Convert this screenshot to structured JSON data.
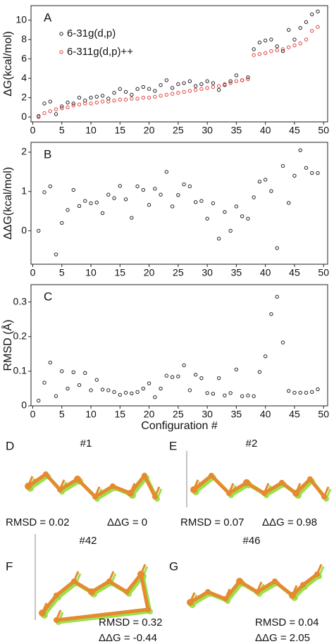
{
  "chart_data": [
    {
      "type": "scatter",
      "label": "A",
      "ylabel": "ΔG(kcal/mol)",
      "x": [
        1,
        2,
        3,
        4,
        5,
        6,
        7,
        8,
        9,
        10,
        11,
        12,
        13,
        14,
        15,
        16,
        17,
        18,
        19,
        20,
        21,
        22,
        23,
        24,
        25,
        26,
        27,
        28,
        29,
        30,
        31,
        32,
        33,
        34,
        35,
        36,
        37,
        38,
        39,
        40,
        41,
        42,
        43,
        44,
        45,
        46,
        47,
        48,
        49
      ],
      "series": [
        {
          "name": "6-31g(d,p)",
          "color": "#222222",
          "values": [
            0.1,
            1.4,
            1.6,
            0.3,
            1.1,
            1.5,
            1.4,
            2.0,
            1.7,
            2.0,
            2.1,
            2.2,
            1.9,
            2.5,
            2.9,
            2.6,
            2.3,
            2.9,
            3.1,
            2.9,
            2.7,
            3.3,
            3.8,
            3.0,
            3.4,
            3.5,
            3.7,
            3.2,
            3.4,
            3.7,
            3.5,
            2.8,
            3.3,
            3.7,
            4.3,
            3.8,
            4.1,
            7.0,
            7.7,
            7.9,
            8.0,
            7.3,
            6.8,
            9.0,
            8.0,
            9.2,
            9.8,
            10.6,
            10.9
          ]
        },
        {
          "name": "6-311g(d,p)++",
          "color": "#e0403a",
          "values": [
            0.0,
            0.4,
            0.6,
            0.8,
            0.9,
            1.0,
            1.2,
            1.3,
            1.4,
            1.4,
            1.5,
            1.6,
            1.6,
            1.7,
            1.8,
            1.8,
            1.9,
            1.9,
            2.0,
            2.0,
            2.1,
            2.2,
            2.3,
            2.4,
            2.5,
            2.6,
            2.7,
            2.8,
            2.9,
            3.0,
            3.1,
            3.2,
            3.4,
            3.5,
            3.7,
            3.8,
            3.9,
            6.4,
            6.5,
            6.6,
            6.8,
            6.9,
            7.0,
            7.2,
            7.4,
            7.6,
            8.0,
            8.9,
            9.3
          ]
        }
      ],
      "xlim": [
        -0.3,
        50.7
      ],
      "ylim": [
        -0.5,
        11.5
      ],
      "xticks": [
        0,
        5,
        10,
        15,
        20,
        25,
        30,
        35,
        40,
        45,
        50
      ],
      "yticks": [
        0,
        2,
        4,
        6,
        8,
        10
      ],
      "legend": "upper left"
    },
    {
      "type": "scatter",
      "label": "B",
      "ylabel": "ΔΔG(kcal/mol)",
      "x": [
        1,
        2,
        3,
        4,
        5,
        6,
        7,
        8,
        9,
        10,
        11,
        12,
        13,
        14,
        15,
        16,
        17,
        18,
        19,
        20,
        21,
        22,
        23,
        24,
        25,
        26,
        27,
        28,
        29,
        30,
        31,
        32,
        33,
        34,
        35,
        36,
        37,
        38,
        39,
        40,
        41,
        42,
        43,
        44,
        45,
        46,
        47,
        48,
        49
      ],
      "series": [
        {
          "name": "ΔΔG",
          "color": "#222222",
          "values": [
            0.0,
            0.98,
            1.13,
            -0.6,
            0.2,
            0.53,
            1.04,
            0.63,
            0.76,
            0.7,
            0.72,
            0.45,
            0.92,
            0.83,
            1.14,
            0.8,
            0.33,
            1.13,
            1.04,
            0.66,
            1.07,
            0.92,
            1.5,
            0.62,
            0.91,
            1.18,
            1.13,
            0.73,
            0.76,
            0.31,
            0.7,
            -0.2,
            0.48,
            0.0,
            0.62,
            0.37,
            0.31,
            0.85,
            1.25,
            1.3,
            1.01,
            -0.44,
            1.65,
            0.71,
            1.4,
            2.05,
            1.6,
            1.47,
            1.47
          ]
        }
      ],
      "xlim": [
        -0.3,
        50.7
      ],
      "ylim": [
        -0.85,
        2.25
      ],
      "xticks": [
        0,
        5,
        10,
        15,
        20,
        25,
        30,
        35,
        40,
        45,
        50
      ],
      "yticks": [
        0,
        1,
        2
      ]
    },
    {
      "type": "scatter",
      "label": "C",
      "ylabel": "RMSD (Å)",
      "xlabel": "Configuration #",
      "x": [
        1,
        2,
        3,
        4,
        5,
        6,
        7,
        8,
        9,
        10,
        11,
        12,
        13,
        14,
        15,
        16,
        17,
        18,
        19,
        20,
        21,
        22,
        23,
        24,
        25,
        26,
        27,
        28,
        29,
        30,
        31,
        32,
        33,
        34,
        35,
        36,
        37,
        38,
        39,
        40,
        41,
        42,
        43,
        44,
        45,
        46,
        47,
        48,
        49
      ],
      "series": [
        {
          "name": "RMSD",
          "color": "#222222",
          "values": [
            0.015,
            0.067,
            0.125,
            0.028,
            0.1,
            0.05,
            0.097,
            0.06,
            0.095,
            0.045,
            0.075,
            0.047,
            0.045,
            0.04,
            0.032,
            0.038,
            0.036,
            0.04,
            0.05,
            0.065,
            0.025,
            0.05,
            0.087,
            0.083,
            0.085,
            0.117,
            0.045,
            0.09,
            0.08,
            0.037,
            0.035,
            0.08,
            0.03,
            0.037,
            0.105,
            0.028,
            0.03,
            0.028,
            0.098,
            0.143,
            0.265,
            0.315,
            0.183,
            0.043,
            0.038,
            0.038,
            0.038,
            0.04,
            0.048
          ]
        }
      ],
      "xlim": [
        -0.3,
        50.7
      ],
      "ylim": [
        0,
        0.35
      ],
      "xticks": [
        0,
        5,
        10,
        15,
        20,
        25,
        30,
        35,
        40,
        45,
        50
      ],
      "yticks": [
        0,
        0.1,
        0.2,
        0.3
      ]
    }
  ],
  "panels": [
    {
      "letter": "D",
      "title": "#1",
      "caption": [
        "RMSD = 0.02",
        "ΔΔG = 0"
      ]
    },
    {
      "letter": "E",
      "title": "#2",
      "caption": [
        "RMSD = 0.07",
        "ΔΔG = 0.98"
      ]
    },
    {
      "letter": "F",
      "title": "#42",
      "caption": [
        "RMSD = 0.32",
        "ΔΔG = -0.44"
      ]
    },
    {
      "letter": "G",
      "title": "#46",
      "caption": [
        "RMSD = 0.04",
        "ΔΔG = 2.05"
      ]
    }
  ]
}
